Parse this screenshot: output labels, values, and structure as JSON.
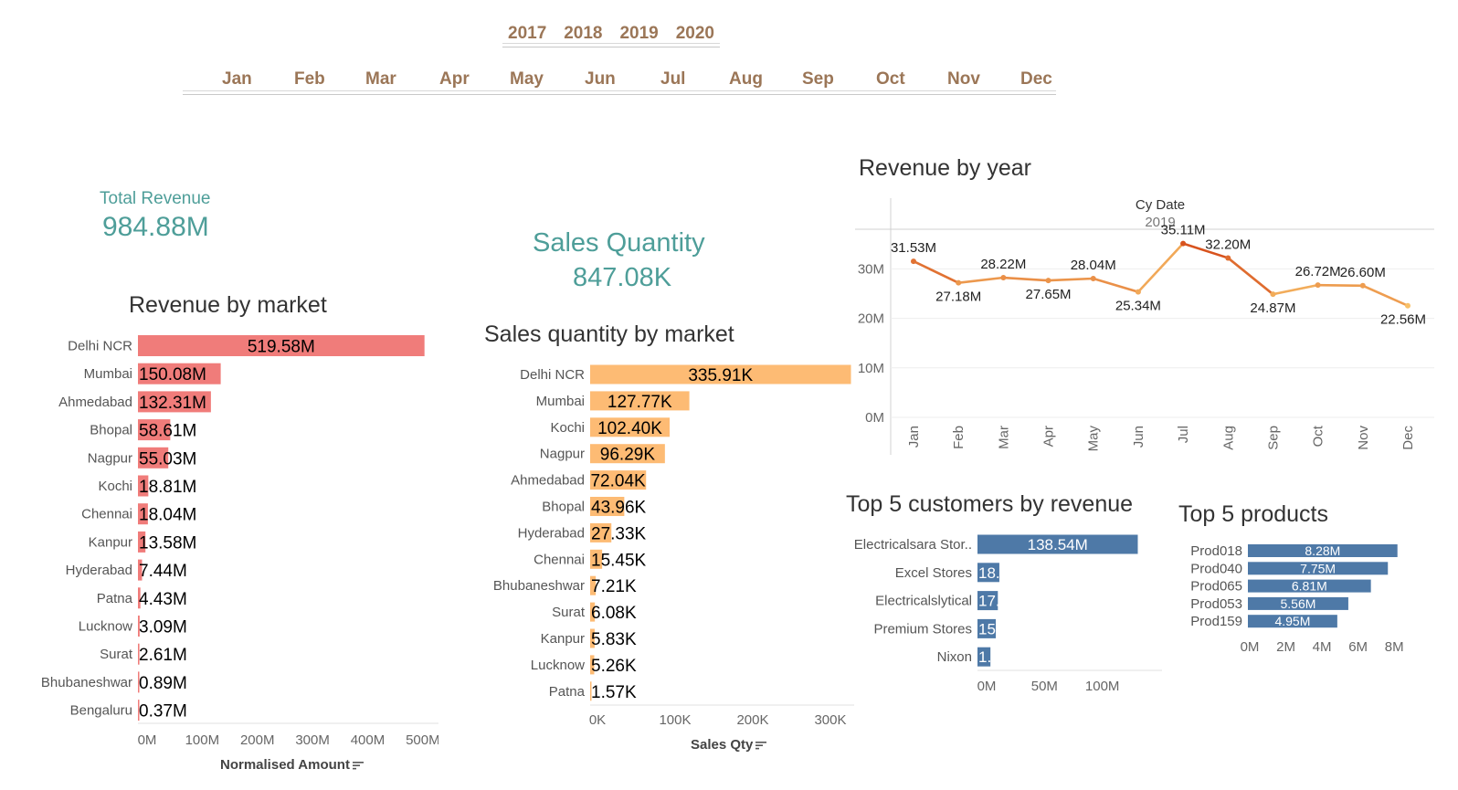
{
  "filters": {
    "years": [
      "2017",
      "2018",
      "2019",
      "2020"
    ],
    "months": [
      "Jan",
      "Feb",
      "Mar",
      "Apr",
      "May",
      "Jun",
      "Jul",
      "Aug",
      "Sep",
      "Oct",
      "Nov",
      "Dec"
    ]
  },
  "kpis": {
    "total_revenue": {
      "label": "Total Revenue",
      "value": "984.88M"
    },
    "sales_quantity": {
      "label": "Sales Quantity",
      "value": "847.08K"
    }
  },
  "icons": {
    "sort": "sort-descending-icon"
  },
  "colors": {
    "accent": "#4e9e99",
    "filter_text": "#9b7657",
    "revenue_bar": "#f07c7a",
    "qty_bar": "#fdbb74",
    "customer_bar": "#4e79a7",
    "line_start": "#d8531e",
    "line_end": "#f8c068"
  },
  "chart_data": [
    {
      "id": "revenue_by_market",
      "type": "bar",
      "orientation": "horizontal",
      "title": "Revenue by market",
      "xlabel": "Normalised Amount",
      "ylabel": "",
      "categories": [
        "Delhi NCR",
        "Mumbai",
        "Ahmedabad",
        "Bhopal",
        "Nagpur",
        "Kochi",
        "Chennai",
        "Kanpur",
        "Hyderabad",
        "Patna",
        "Lucknow",
        "Surat",
        "Bhubaneshwar",
        "Bengaluru"
      ],
      "values": [
        519.58,
        150.08,
        132.31,
        58.61,
        55.03,
        18.81,
        18.04,
        13.58,
        7.44,
        4.43,
        3.09,
        2.61,
        0.89,
        0.37
      ],
      "labels": [
        "519.58M",
        "150.08M",
        "132.31M",
        "58.61M",
        "55.03M",
        "18.81M",
        "18.04M",
        "13.58M",
        "7.44M",
        "4.43M",
        "3.09M",
        "2.61M",
        "0.89M",
        "0.37M"
      ],
      "xticks": [
        "0M",
        "100M",
        "200M",
        "300M",
        "400M",
        "500M"
      ],
      "xtick_values": [
        0,
        100,
        200,
        300,
        400,
        500
      ],
      "xlim": [
        0,
        540
      ],
      "color": "#f07c7a"
    },
    {
      "id": "sales_qty_by_market",
      "type": "bar",
      "orientation": "horizontal",
      "title": "Sales quantity by market",
      "xlabel": "Sales Qty",
      "ylabel": "",
      "categories": [
        "Delhi NCR",
        "Mumbai",
        "Kochi",
        "Nagpur",
        "Ahmedabad",
        "Bhopal",
        "Hyderabad",
        "Chennai",
        "Bhubaneshwar",
        "Surat",
        "Kanpur",
        "Lucknow",
        "Patna"
      ],
      "values": [
        335.91,
        127.77,
        102.4,
        96.29,
        72.04,
        43.96,
        27.33,
        15.45,
        7.21,
        6.08,
        5.83,
        5.26,
        1.57
      ],
      "labels": [
        "335.91K",
        "127.77K",
        "102.40K",
        "96.29K",
        "72.04K",
        "43.96K",
        "27.33K",
        "15.45K",
        "7.21K",
        "6.08K",
        "5.83K",
        "5.26K",
        "1.57K"
      ],
      "xticks": [
        "0K",
        "100K",
        "200K",
        "300K"
      ],
      "xtick_values": [
        0,
        100,
        200,
        300
      ],
      "xlim": [
        0,
        360
      ],
      "color": "#fdbb74"
    },
    {
      "id": "revenue_by_year",
      "type": "line",
      "title": "Revenue by year",
      "header": "Cy Date",
      "subheader": "2019",
      "xlabel": "",
      "ylabel": "",
      "x": [
        "Jan",
        "Feb",
        "Mar",
        "Apr",
        "May",
        "Jun",
        "Jul",
        "Aug",
        "Sep",
        "Oct",
        "Nov",
        "Dec"
      ],
      "values": [
        31.53,
        27.18,
        28.22,
        27.65,
        28.04,
        25.34,
        35.11,
        32.2,
        24.87,
        26.72,
        26.6,
        22.56
      ],
      "labels": [
        "31.53M",
        "27.18M",
        "28.22M",
        "27.65M",
        "28.04M",
        "25.34M",
        "35.11M",
        "32.20M",
        "24.87M",
        "26.72M",
        "26.60M",
        "22.56M"
      ],
      "yticks": [
        "0M",
        "10M",
        "20M",
        "30M"
      ],
      "ytick_values": [
        0,
        10,
        20,
        30
      ],
      "ylim": [
        0,
        38
      ],
      "grid": true,
      "color_range": [
        "#d8531e",
        "#f8c068"
      ]
    },
    {
      "id": "top5_customers",
      "type": "bar",
      "orientation": "horizontal",
      "title": "Top 5 customers by revenue",
      "xlabel": "",
      "ylabel": "",
      "categories": [
        "Electricalsara Stor..",
        "Excel Stores",
        "Electricalslytical",
        "Premium Stores",
        "Nixon"
      ],
      "values": [
        138.54,
        18.9,
        17.6,
        15.8,
        11.2
      ],
      "labels": [
        "138.54M",
        "18.",
        "17.",
        "15",
        "1."
      ],
      "xticks": [
        "0M",
        "50M",
        "100M"
      ],
      "xtick_values": [
        0,
        50,
        100
      ],
      "xlim": [
        0,
        150
      ],
      "color": "#4e79a7"
    },
    {
      "id": "top5_products",
      "type": "bar",
      "orientation": "horizontal",
      "title": "Top 5 products",
      "xlabel": "",
      "ylabel": "",
      "categories": [
        "Prod018",
        "Prod040",
        "Prod065",
        "Prod053",
        "Prod159"
      ],
      "values": [
        8.28,
        7.75,
        6.81,
        5.56,
        4.95
      ],
      "labels": [
        "8.28M",
        "7.75M",
        "6.81M",
        "5.56M",
        "4.95M"
      ],
      "xticks": [
        "0M",
        "2M",
        "4M",
        "6M",
        "8M"
      ],
      "xtick_values": [
        0,
        2,
        4,
        6,
        8
      ],
      "xlim": [
        0,
        8.8
      ],
      "color": "#4e79a7"
    }
  ]
}
